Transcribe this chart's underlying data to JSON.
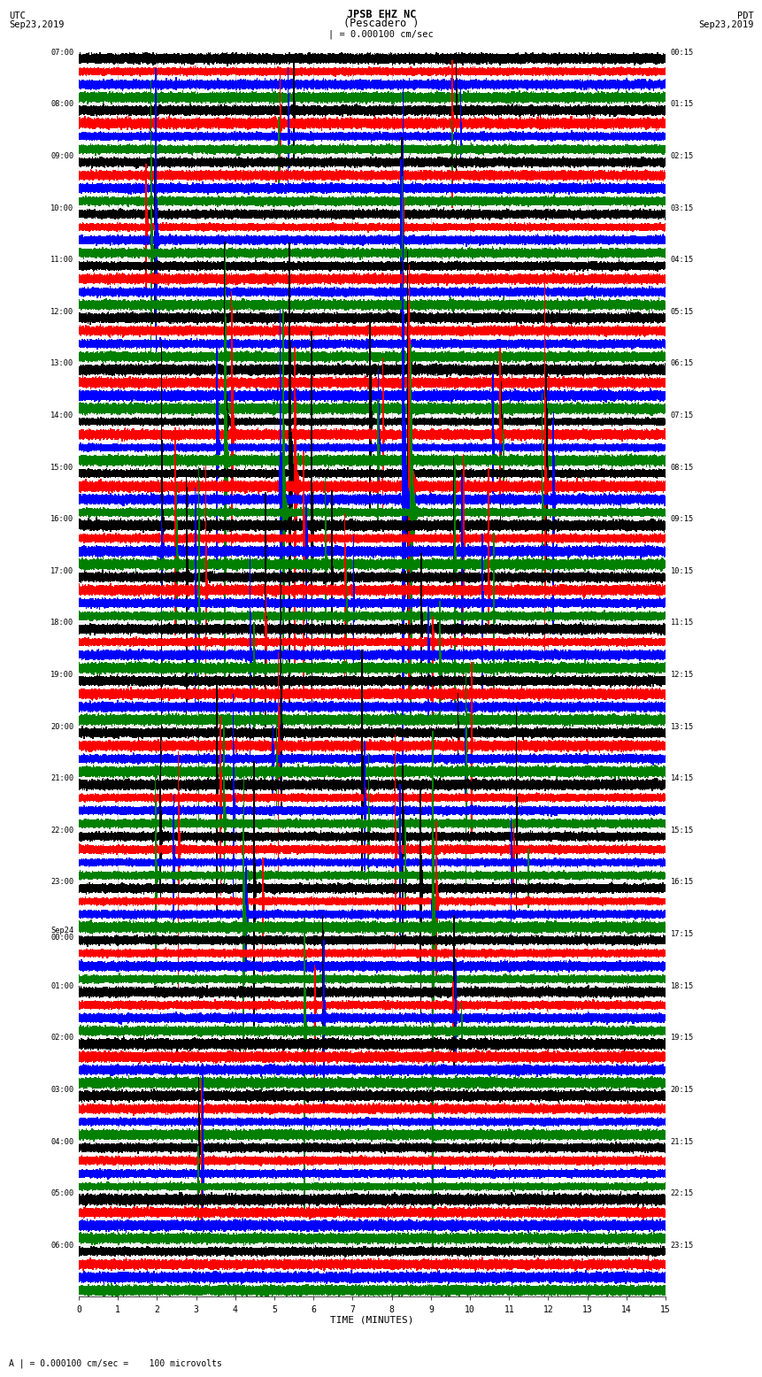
{
  "title_line1": "JPSB EHZ NC",
  "title_line2": "(Pescadero )",
  "scale_label": "| = 0.000100 cm/sec",
  "footer_label": "A | = 0.000100 cm/sec =    100 microvolts",
  "xlabel": "TIME (MINUTES)",
  "left_header_line1": "UTC",
  "left_header_line2": "Sep23,2019",
  "right_header_line1": "PDT",
  "right_header_line2": "Sep23,2019",
  "num_rows": 24,
  "traces_per_row": 4,
  "colors": [
    "black",
    "red",
    "blue",
    "green"
  ],
  "bg_color": "white",
  "x_ticks": [
    0,
    1,
    2,
    3,
    4,
    5,
    6,
    7,
    8,
    9,
    10,
    11,
    12,
    13,
    14,
    15
  ],
  "left_times": [
    "07:00",
    "08:00",
    "09:00",
    "10:00",
    "11:00",
    "12:00",
    "13:00",
    "14:00",
    "15:00",
    "16:00",
    "17:00",
    "18:00",
    "19:00",
    "20:00",
    "21:00",
    "22:00",
    "23:00",
    "Sep24\n00:00",
    "01:00",
    "02:00",
    "03:00",
    "04:00",
    "05:00",
    "06:00"
  ],
  "right_times": [
    "00:15",
    "01:15",
    "02:15",
    "03:15",
    "04:15",
    "05:15",
    "06:15",
    "07:15",
    "08:15",
    "09:15",
    "10:15",
    "11:15",
    "12:15",
    "13:15",
    "14:15",
    "15:15",
    "16:15",
    "17:15",
    "18:15",
    "19:15",
    "20:15",
    "21:15",
    "22:15",
    "23:15"
  ],
  "fig_width": 8.5,
  "fig_height": 16.13,
  "seed": 42
}
